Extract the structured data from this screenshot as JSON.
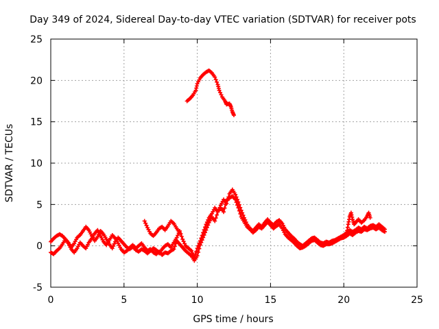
{
  "chart_data": {
    "type": "scatter",
    "title": "Day 349 of 2024, Sidereal Day-to-day VTEC variation (SDTVAR) for receiver pots",
    "xlabel": "GPS time / hours",
    "ylabel": "SDTVAR / TECUs",
    "xlim": [
      0,
      25
    ],
    "ylim": [
      -5,
      25
    ],
    "xticks": [
      0,
      5,
      10,
      15,
      20,
      25
    ],
    "yticks": [
      -5,
      0,
      5,
      10,
      15,
      20,
      25
    ],
    "grid": true,
    "series": [
      {
        "name": "sdtvar-main",
        "color": "#ff0000",
        "points": [
          [
            0.0,
            -0.8
          ],
          [
            0.2,
            -1.0
          ],
          [
            0.4,
            -0.6
          ],
          [
            0.6,
            -0.3
          ],
          [
            0.8,
            0.2
          ],
          [
            1.0,
            0.8
          ],
          [
            1.2,
            0.4
          ],
          [
            1.4,
            -0.2
          ],
          [
            1.6,
            0.3
          ],
          [
            1.8,
            1.0
          ],
          [
            2.0,
            1.3
          ],
          [
            2.2,
            1.8
          ],
          [
            2.4,
            2.3
          ],
          [
            2.6,
            1.9
          ],
          [
            2.8,
            1.2
          ],
          [
            3.0,
            0.6
          ],
          [
            3.2,
            1.1
          ],
          [
            3.4,
            1.8
          ],
          [
            3.6,
            1.4
          ],
          [
            3.8,
            0.8
          ],
          [
            4.0,
            0.2
          ],
          [
            4.2,
            -0.3
          ],
          [
            4.4,
            0.5
          ],
          [
            4.6,
            1.0
          ],
          [
            4.8,
            0.6
          ],
          [
            5.0,
            0.2
          ],
          [
            5.2,
            -0.2
          ],
          [
            5.4,
            -0.4
          ],
          [
            5.6,
            -0.1
          ],
          [
            5.8,
            -0.5
          ],
          [
            6.0,
            -0.7
          ],
          [
            6.2,
            -0.4
          ],
          [
            6.4,
            -0.6
          ],
          [
            6.6,
            -0.9
          ],
          [
            6.8,
            -0.6
          ],
          [
            7.0,
            -0.3
          ],
          [
            7.2,
            -0.5
          ],
          [
            7.4,
            -0.9
          ],
          [
            7.6,
            -0.4
          ],
          [
            7.8,
            0.0
          ],
          [
            8.0,
            0.2
          ],
          [
            8.2,
            -0.2
          ],
          [
            8.4,
            0.4
          ],
          [
            8.6,
            1.0
          ],
          [
            8.8,
            1.8
          ],
          [
            9.0,
            0.8
          ],
          [
            9.2,
            0.0
          ],
          [
            9.4,
            -0.3
          ],
          [
            9.6,
            -0.6
          ],
          [
            9.8,
            -1.4
          ],
          [
            10.0,
            -0.3
          ],
          [
            10.2,
            0.6
          ],
          [
            10.4,
            1.6
          ],
          [
            10.6,
            2.6
          ],
          [
            10.8,
            3.4
          ],
          [
            11.0,
            3.9
          ],
          [
            11.2,
            4.6
          ],
          [
            11.4,
            4.1
          ],
          [
            11.6,
            4.9
          ],
          [
            11.8,
            5.6
          ],
          [
            12.0,
            5.1
          ],
          [
            12.2,
            6.3
          ],
          [
            12.4,
            6.8
          ],
          [
            12.6,
            6.2
          ],
          [
            12.8,
            5.3
          ],
          [
            13.0,
            4.3
          ],
          [
            13.2,
            3.4
          ],
          [
            13.4,
            2.6
          ],
          [
            13.6,
            2.1
          ],
          [
            13.8,
            1.8
          ],
          [
            14.0,
            2.2
          ],
          [
            14.2,
            2.6
          ],
          [
            14.4,
            2.3
          ],
          [
            14.6,
            2.8
          ],
          [
            14.8,
            3.2
          ],
          [
            15.0,
            2.8
          ],
          [
            15.2,
            2.5
          ],
          [
            15.4,
            2.9
          ],
          [
            15.6,
            3.1
          ],
          [
            15.8,
            2.7
          ],
          [
            16.0,
            2.0
          ],
          [
            16.2,
            1.6
          ],
          [
            16.4,
            1.2
          ],
          [
            16.6,
            0.9
          ],
          [
            16.8,
            0.5
          ],
          [
            17.0,
            0.2
          ],
          [
            17.2,
            0.0
          ],
          [
            17.4,
            0.3
          ],
          [
            17.6,
            0.6
          ],
          [
            17.8,
            0.9
          ],
          [
            18.0,
            1.0
          ],
          [
            18.2,
            0.7
          ],
          [
            18.4,
            0.4
          ],
          [
            18.6,
            0.3
          ],
          [
            18.8,
            0.5
          ],
          [
            19.0,
            0.4
          ],
          [
            19.2,
            0.6
          ],
          [
            19.4,
            0.7
          ],
          [
            19.6,
            0.9
          ],
          [
            19.8,
            1.1
          ],
          [
            20.0,
            1.3
          ],
          [
            20.2,
            1.6
          ],
          [
            20.4,
            1.9
          ],
          [
            20.6,
            1.7
          ],
          [
            20.8,
            1.9
          ],
          [
            21.0,
            2.2
          ],
          [
            21.2,
            2.0
          ],
          [
            21.4,
            2.3
          ],
          [
            21.6,
            2.1
          ],
          [
            21.8,
            2.4
          ],
          [
            22.0,
            2.5
          ],
          [
            22.2,
            2.3
          ],
          [
            22.4,
            2.6
          ],
          [
            22.6,
            2.3
          ],
          [
            22.8,
            2.0
          ]
        ]
      },
      {
        "name": "sdtvar-secondary",
        "color": "#ff0000",
        "points": [
          [
            0.0,
            0.5
          ],
          [
            0.2,
            0.9
          ],
          [
            0.4,
            1.2
          ],
          [
            0.6,
            1.4
          ],
          [
            0.8,
            1.2
          ],
          [
            1.0,
            0.8
          ],
          [
            1.2,
            0.3
          ],
          [
            1.4,
            -0.4
          ],
          [
            1.6,
            -0.8
          ],
          [
            1.8,
            -0.3
          ],
          [
            2.0,
            0.4
          ],
          [
            2.2,
            0.0
          ],
          [
            2.4,
            -0.3
          ],
          [
            2.6,
            0.4
          ],
          [
            2.8,
            0.9
          ],
          [
            3.0,
            1.5
          ],
          [
            3.2,
            1.9
          ],
          [
            3.4,
            1.2
          ],
          [
            3.6,
            0.5
          ],
          [
            3.8,
            0.1
          ],
          [
            4.0,
            0.7
          ],
          [
            4.2,
            1.3
          ],
          [
            4.4,
            0.9
          ],
          [
            4.6,
            0.3
          ],
          [
            4.8,
            -0.4
          ],
          [
            5.0,
            -0.8
          ],
          [
            5.2,
            -0.6
          ],
          [
            5.4,
            -0.2
          ],
          [
            5.6,
            0.1
          ],
          [
            5.8,
            -0.3
          ],
          [
            6.0,
            0.0
          ],
          [
            6.2,
            0.3
          ],
          [
            6.4,
            -0.2
          ],
          [
            6.6,
            -0.6
          ],
          [
            6.8,
            -0.4
          ],
          [
            7.0,
            -0.8
          ],
          [
            7.2,
            -1.0
          ],
          [
            7.4,
            -0.7
          ],
          [
            7.6,
            -1.1
          ],
          [
            7.8,
            -0.8
          ],
          [
            8.0,
            -0.9
          ],
          [
            8.2,
            -0.6
          ],
          [
            8.4,
            -0.4
          ],
          [
            8.6,
            0.6
          ],
          [
            8.8,
            0.2
          ],
          [
            9.0,
            -0.2
          ],
          [
            9.2,
            -0.6
          ],
          [
            9.4,
            -0.9
          ],
          [
            9.6,
            -1.2
          ],
          [
            9.8,
            -1.8
          ],
          [
            10.0,
            -1.2
          ],
          [
            10.2,
            0.1
          ],
          [
            10.4,
            1.0
          ],
          [
            10.6,
            1.9
          ],
          [
            10.8,
            2.8
          ],
          [
            11.0,
            3.5
          ],
          [
            11.2,
            3.0
          ],
          [
            11.4,
            4.1
          ],
          [
            11.6,
            4.6
          ],
          [
            11.8,
            4.1
          ],
          [
            12.0,
            5.5
          ],
          [
            12.2,
            5.8
          ],
          [
            12.4,
            6.0
          ],
          [
            12.6,
            5.6
          ],
          [
            12.8,
            4.6
          ],
          [
            13.0,
            3.5
          ],
          [
            13.2,
            2.9
          ],
          [
            13.4,
            2.3
          ],
          [
            13.6,
            2.0
          ],
          [
            13.8,
            1.6
          ],
          [
            14.0,
            1.9
          ],
          [
            14.2,
            2.3
          ],
          [
            14.4,
            2.1
          ],
          [
            14.6,
            2.5
          ],
          [
            14.8,
            2.9
          ],
          [
            15.0,
            2.5
          ],
          [
            15.2,
            2.1
          ],
          [
            15.4,
            2.4
          ],
          [
            15.6,
            2.6
          ],
          [
            15.8,
            2.1
          ],
          [
            16.0,
            1.4
          ],
          [
            16.2,
            1.0
          ],
          [
            16.4,
            0.7
          ],
          [
            16.6,
            0.4
          ],
          [
            16.8,
            0.0
          ],
          [
            17.0,
            -0.3
          ],
          [
            17.2,
            -0.2
          ],
          [
            17.4,
            0.0
          ],
          [
            17.6,
            0.3
          ],
          [
            17.8,
            0.6
          ],
          [
            18.0,
            0.7
          ],
          [
            18.2,
            0.4
          ],
          [
            18.4,
            0.1
          ],
          [
            18.6,
            0.0
          ],
          [
            18.8,
            0.2
          ],
          [
            19.0,
            0.2
          ],
          [
            19.2,
            0.3
          ],
          [
            19.4,
            0.5
          ],
          [
            19.6,
            0.7
          ],
          [
            19.8,
            0.9
          ],
          [
            20.0,
            1.0
          ],
          [
            20.2,
            1.2
          ],
          [
            20.4,
            1.5
          ],
          [
            20.6,
            1.3
          ],
          [
            20.8,
            1.6
          ],
          [
            21.0,
            1.8
          ],
          [
            21.2,
            1.7
          ],
          [
            21.4,
            2.0
          ],
          [
            21.6,
            1.9
          ],
          [
            21.8,
            2.1
          ],
          [
            22.0,
            2.2
          ],
          [
            22.2,
            2.0
          ],
          [
            22.4,
            2.2
          ],
          [
            22.6,
            1.9
          ],
          [
            22.8,
            1.7
          ]
        ]
      },
      {
        "name": "sdtvar-arc-6h",
        "color": "#ff0000",
        "points": [
          [
            6.4,
            3.0
          ],
          [
            6.6,
            2.2
          ],
          [
            6.8,
            1.5
          ],
          [
            7.0,
            1.2
          ],
          [
            7.2,
            1.6
          ],
          [
            7.4,
            2.1
          ],
          [
            7.6,
            2.3
          ],
          [
            7.8,
            1.9
          ],
          [
            8.0,
            2.4
          ],
          [
            8.2,
            3.0
          ],
          [
            8.4,
            2.7
          ],
          [
            8.6,
            2.1
          ],
          [
            8.8,
            1.6
          ]
        ]
      },
      {
        "name": "sdtvar-spikes-20h",
        "color": "#ff0000",
        "points": [
          [
            20.2,
            1.5
          ],
          [
            20.3,
            2.6
          ],
          [
            20.4,
            3.5
          ],
          [
            20.5,
            4.0
          ],
          [
            20.6,
            3.2
          ],
          [
            20.7,
            2.6
          ],
          [
            20.8,
            2.8
          ],
          [
            21.0,
            3.2
          ],
          [
            21.2,
            2.8
          ],
          [
            21.4,
            3.1
          ],
          [
            21.6,
            3.6
          ],
          [
            21.7,
            4.0
          ],
          [
            21.8,
            3.4
          ]
        ]
      },
      {
        "name": "sdtvar-upper-arc",
        "color": "#ff0000",
        "points": [
          [
            9.3,
            17.5
          ],
          [
            9.5,
            17.8
          ],
          [
            9.7,
            18.2
          ],
          [
            9.9,
            18.8
          ],
          [
            10.0,
            19.6
          ],
          [
            10.2,
            20.3
          ],
          [
            10.4,
            20.7
          ],
          [
            10.6,
            21.0
          ],
          [
            10.8,
            21.2
          ],
          [
            11.0,
            20.9
          ],
          [
            11.2,
            20.4
          ],
          [
            11.4,
            19.5
          ],
          [
            11.5,
            18.8
          ],
          [
            11.7,
            18.0
          ],
          [
            11.9,
            17.5
          ],
          [
            12.0,
            17.1
          ],
          [
            12.2,
            17.2
          ],
          [
            12.3,
            16.8
          ],
          [
            12.4,
            16.2
          ],
          [
            12.5,
            15.8
          ]
        ]
      }
    ]
  }
}
